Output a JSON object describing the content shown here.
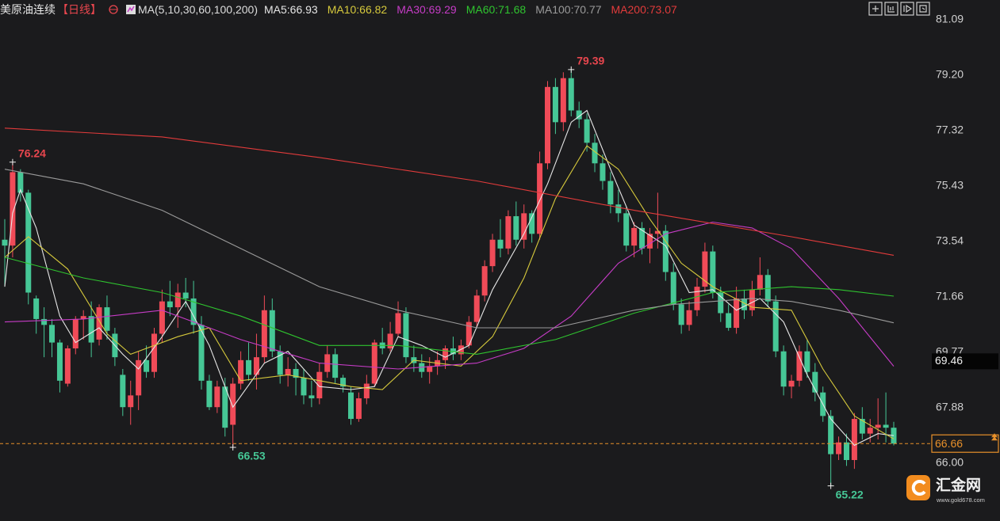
{
  "chart_data": {
    "type": "candlestick",
    "title": "美原油连续",
    "period": "【日线】",
    "indicator": "MA(5,10,30,60,100,200)",
    "up_color": "#f04b58",
    "down_color": "#46c796",
    "ylim": [
      64.24,
      81.76
    ],
    "yticks": [
      81.09,
      {
        "value": 79.2,
        "label": "79.20"
      },
      77.32,
      75.43,
      73.54,
      71.66,
      69.77,
      67.88,
      {
        "value": 66,
        "label": "66.00"
      }
    ],
    "cursor_price": 69.46,
    "candles": [
      [
        73.6,
        74.3,
        72.0,
        73.4
      ],
      [
        73.4,
        76.24,
        73.0,
        75.9
      ],
      [
        75.9,
        76.0,
        74.9,
        75.2
      ],
      [
        75.2,
        75.3,
        71.4,
        71.8
      ],
      [
        71.6,
        71.7,
        70.4,
        70.9
      ],
      [
        70.9,
        71.3,
        69.6,
        70.7
      ],
      [
        70.7,
        70.9,
        69.6,
        70.1
      ],
      [
        70.1,
        70.2,
        68.4,
        68.8
      ],
      [
        68.7,
        70.0,
        68.6,
        69.9
      ],
      [
        69.9,
        71.0,
        69.7,
        70.9
      ],
      [
        70.9,
        71.2,
        70.2,
        71.0
      ],
      [
        71.0,
        71.5,
        69.6,
        70.1
      ],
      [
        70.2,
        71.4,
        70.0,
        71.3
      ],
      [
        71.3,
        71.7,
        70.2,
        70.5
      ],
      [
        70.4,
        70.6,
        69.3,
        69.6
      ],
      [
        69.0,
        69.2,
        67.6,
        67.9
      ],
      [
        67.9,
        68.8,
        67.3,
        68.3
      ],
      [
        68.3,
        69.8,
        67.8,
        69.5
      ],
      [
        69.5,
        70.0,
        68.9,
        69.1
      ],
      [
        69.1,
        70.6,
        68.9,
        70.4
      ],
      [
        70.4,
        71.9,
        70.1,
        71.5
      ],
      [
        71.5,
        72.2,
        71.0,
        71.3
      ],
      [
        71.3,
        72.1,
        70.6,
        71.8
      ],
      [
        71.8,
        72.3,
        71.3,
        71.6
      ],
      [
        71.6,
        72.2,
        70.4,
        70.7
      ],
      [
        70.7,
        71.0,
        68.5,
        68.8
      ],
      [
        68.8,
        69.0,
        67.8,
        67.9
      ],
      [
        67.9,
        68.8,
        67.7,
        68.6
      ],
      [
        68.6,
        68.9,
        66.9,
        67.2
      ],
      [
        67.3,
        68.9,
        66.53,
        68.7
      ],
      [
        68.7,
        69.8,
        68.5,
        69.5
      ],
      [
        69.5,
        70.1,
        68.8,
        69.0
      ],
      [
        69.0,
        70.4,
        68.5,
        69.6
      ],
      [
        69.6,
        71.7,
        69.4,
        71.2
      ],
      [
        71.2,
        71.6,
        69.6,
        69.8
      ],
      [
        69.8,
        70.0,
        68.7,
        69.0
      ],
      [
        69.0,
        69.6,
        68.6,
        69.2
      ],
      [
        69.2,
        69.4,
        68.3,
        68.9
      ],
      [
        68.9,
        69.2,
        68.0,
        68.3
      ],
      [
        68.3,
        68.8,
        67.9,
        68.2
      ],
      [
        68.2,
        69.4,
        68.0,
        69.1
      ],
      [
        69.1,
        70.0,
        68.9,
        69.7
      ],
      [
        69.7,
        69.9,
        68.7,
        68.9
      ],
      [
        68.9,
        69.0,
        68.4,
        68.6
      ],
      [
        68.4,
        68.6,
        67.3,
        67.5
      ],
      [
        67.5,
        68.4,
        67.4,
        68.2
      ],
      [
        68.2,
        69.0,
        68.0,
        68.7
      ],
      [
        68.7,
        70.2,
        68.6,
        70.1
      ],
      [
        70.1,
        70.6,
        69.7,
        69.9
      ],
      [
        69.9,
        70.8,
        69.8,
        70.4
      ],
      [
        70.4,
        71.5,
        70.3,
        71.1
      ],
      [
        71.1,
        71.3,
        69.4,
        69.6
      ],
      [
        69.6,
        70.0,
        69.1,
        69.4
      ],
      [
        69.4,
        69.7,
        68.9,
        69.1
      ],
      [
        69.1,
        69.6,
        68.7,
        69.3
      ],
      [
        69.3,
        69.8,
        69.0,
        69.5
      ],
      [
        69.5,
        70.0,
        69.2,
        69.9
      ],
      [
        69.9,
        70.3,
        69.5,
        69.7
      ],
      [
        69.7,
        70.2,
        69.5,
        70.0
      ],
      [
        70.0,
        71.0,
        69.9,
        70.8
      ],
      [
        70.8,
        71.9,
        70.6,
        71.7
      ],
      [
        71.7,
        72.9,
        71.5,
        72.7
      ],
      [
        72.7,
        73.8,
        72.5,
        73.6
      ],
      [
        73.6,
        74.3,
        73.0,
        73.3
      ],
      [
        73.3,
        74.6,
        73.1,
        74.4
      ],
      [
        74.4,
        74.9,
        73.4,
        73.6
      ],
      [
        73.6,
        74.8,
        73.3,
        74.5
      ],
      [
        74.5,
        74.6,
        73.5,
        73.8
      ],
      [
        73.8,
        76.6,
        73.6,
        76.2
      ],
      [
        76.2,
        79.0,
        76.0,
        78.8
      ],
      [
        78.8,
        79.1,
        77.2,
        77.6
      ],
      [
        77.6,
        79.3,
        77.3,
        79.1
      ],
      [
        79.1,
        79.39,
        77.8,
        78.0
      ],
      [
        78.0,
        78.3,
        77.4,
        77.7
      ],
      [
        77.7,
        77.9,
        76.6,
        76.9
      ],
      [
        76.9,
        77.2,
        75.9,
        76.2
      ],
      [
        76.2,
        76.5,
        75.3,
        75.6
      ],
      [
        75.6,
        75.9,
        74.5,
        74.8
      ],
      [
        74.8,
        75.3,
        74.2,
        74.5
      ],
      [
        74.5,
        74.7,
        73.2,
        73.4
      ],
      [
        73.4,
        74.2,
        73.0,
        74.0
      ],
      [
        74.0,
        74.2,
        73.1,
        73.3
      ],
      [
        73.3,
        74.0,
        72.8,
        73.8
      ],
      [
        73.8,
        75.2,
        73.3,
        73.9
      ],
      [
        73.9,
        74.1,
        72.2,
        72.5
      ],
      [
        72.5,
        72.8,
        71.2,
        71.4
      ],
      [
        71.4,
        71.6,
        70.4,
        70.7
      ],
      [
        70.7,
        71.5,
        70.5,
        71.2
      ],
      [
        71.2,
        72.3,
        71.0,
        72.0
      ],
      [
        72.0,
        73.5,
        71.8,
        73.2
      ],
      [
        73.2,
        73.4,
        71.6,
        71.8
      ],
      [
        71.8,
        72.0,
        70.8,
        71.1
      ],
      [
        71.1,
        71.4,
        70.5,
        70.6
      ],
      [
        70.6,
        72.0,
        70.4,
        71.6
      ],
      [
        71.6,
        71.9,
        70.9,
        71.2
      ],
      [
        71.2,
        72.2,
        71.0,
        71.9
      ],
      [
        71.9,
        73.0,
        71.7,
        72.4
      ],
      [
        72.4,
        72.6,
        71.3,
        71.5
      ],
      [
        71.5,
        71.7,
        69.6,
        69.8
      ],
      [
        69.8,
        70.0,
        68.3,
        68.6
      ],
      [
        68.6,
        69.0,
        68.2,
        68.8
      ],
      [
        68.8,
        70.0,
        68.6,
        69.8
      ],
      [
        69.8,
        70.2,
        68.9,
        69.1
      ],
      [
        69.1,
        69.4,
        68.1,
        68.4
      ],
      [
        68.4,
        68.6,
        67.4,
        67.6
      ],
      [
        67.6,
        67.8,
        65.22,
        66.3
      ],
      [
        66.3,
        66.9,
        66.1,
        66.7
      ],
      [
        66.7,
        67.0,
        65.9,
        66.1
      ],
      [
        66.1,
        67.7,
        65.8,
        67.5
      ],
      [
        67.5,
        67.9,
        66.8,
        67.0
      ],
      [
        67.0,
        67.5,
        66.7,
        67.2
      ],
      [
        67.2,
        68.2,
        66.8,
        67.3
      ],
      [
        67.3,
        68.4,
        66.7,
        67.2
      ],
      [
        67.2,
        67.4,
        66.6,
        66.66
      ]
    ],
    "ma": [
      {
        "name": "MA5:66.93",
        "color": "#e6e6e6",
        "x": [
          0,
          1,
          2,
          4,
          7,
          9,
          12,
          15,
          17,
          20,
          23,
          26,
          29,
          33,
          36,
          40,
          44,
          47,
          50,
          53,
          56,
          59,
          62,
          66,
          69,
          72,
          74,
          77,
          80,
          84,
          87,
          90,
          93,
          96,
          99,
          102,
          105,
          108,
          111,
          113
        ],
        "values": [
          72.0,
          74.5,
          75.3,
          74.0,
          71.0,
          70.1,
          70.6,
          69.7,
          69.2,
          70.3,
          71.5,
          70.0,
          67.9,
          69.4,
          69.8,
          68.6,
          68.5,
          68.6,
          70.3,
          70.0,
          69.6,
          70.0,
          71.9,
          73.8,
          75.5,
          77.6,
          78.0,
          76.0,
          74.1,
          73.4,
          71.8,
          71.9,
          71.2,
          71.6,
          70.8,
          69.0,
          67.5,
          66.6,
          67.0,
          66.93
        ]
      },
      {
        "name": "MA10:66.82",
        "color": "#d6c93c",
        "x": [
          0,
          3,
          8,
          13,
          16,
          22,
          26,
          30,
          36,
          44,
          48,
          52,
          58,
          62,
          66,
          70,
          74,
          78,
          82,
          86,
          90,
          95,
          100,
          104,
          108,
          113
        ],
        "values": [
          73.0,
          73.7,
          72.6,
          70.4,
          69.7,
          70.3,
          70.6,
          68.8,
          69.0,
          68.6,
          68.5,
          69.5,
          69.3,
          70.3,
          72.3,
          75.0,
          76.8,
          76.0,
          74.3,
          72.8,
          72.0,
          71.3,
          71.2,
          69.2,
          67.6,
          66.82
        ]
      },
      {
        "name": "MA30:69.29",
        "color": "#c63cc6",
        "x": [
          0,
          10,
          20,
          30,
          40,
          50,
          60,
          66,
          72,
          78,
          84,
          90,
          95,
          100,
          106,
          113
        ],
        "values": [
          70.8,
          70.9,
          71.2,
          70.2,
          69.4,
          69.2,
          69.4,
          69.9,
          71.0,
          72.8,
          73.8,
          74.2,
          74.0,
          73.3,
          71.6,
          69.29
        ]
      },
      {
        "name": "MA60:71.68",
        "color": "#2fc42f",
        "x": [
          0,
          10,
          20,
          30,
          40,
          50,
          60,
          70,
          80,
          90,
          100,
          106,
          113
        ],
        "values": [
          73.0,
          72.3,
          71.8,
          71.0,
          70.0,
          70.0,
          69.7,
          70.2,
          71.1,
          71.8,
          72.0,
          71.9,
          71.68
        ]
      },
      {
        "name": "MA100:70.77",
        "color": "#9a9a9a",
        "x": [
          0,
          10,
          20,
          30,
          40,
          50,
          60,
          70,
          80,
          85,
          95,
          100,
          106,
          113
        ],
        "values": [
          76.0,
          75.5,
          74.6,
          73.3,
          72.0,
          71.2,
          70.6,
          70.6,
          71.2,
          71.4,
          71.6,
          71.5,
          71.2,
          70.77
        ]
      },
      {
        "name": "MA200:73.07",
        "color": "#e23b3b",
        "x": [
          0,
          20,
          40,
          60,
          80,
          100,
          113
        ],
        "values": [
          77.4,
          77.1,
          76.4,
          75.6,
          74.6,
          73.7,
          73.07
        ]
      }
    ],
    "logo": {
      "name": "汇金网",
      "url": "www.gold678.com"
    }
  }
}
